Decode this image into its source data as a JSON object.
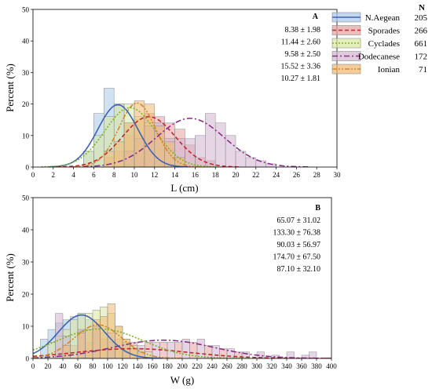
{
  "legend": {
    "n_header": "N",
    "entries": [
      {
        "name": "N.Aegean",
        "n": "205",
        "color": "#3d63b8",
        "fill": "#a9c8e8",
        "dash": "none"
      },
      {
        "name": "Sporades",
        "n": "266",
        "color": "#c0282d",
        "fill": "#e8a0a0",
        "dash": "5,3"
      },
      {
        "name": "Cyclades",
        "n": "661",
        "color": "#7ab51d",
        "fill": "#d8e8a0",
        "dash": "2,2"
      },
      {
        "name": "Dodecanese",
        "n": "172",
        "color": "#8a2d8a",
        "fill": "#d2b4d0",
        "dash": "7,3,2,3"
      },
      {
        "name": "Ionian",
        "n": "71",
        "color": "#d4862a",
        "fill": "#f0b870",
        "dash": "6,2,2,2,2,2"
      }
    ]
  },
  "chart_data": [
    {
      "type": "bar",
      "panel": "A",
      "xlabel": "L (cm)",
      "ylabel": "Percent (%)",
      "xlim": [
        0,
        30
      ],
      "ylim": [
        0,
        50
      ],
      "xticks": [
        "0",
        "2",
        "4",
        "6",
        "8",
        "10",
        "12",
        "14",
        "16",
        "18",
        "20",
        "22",
        "24",
        "26",
        "28",
        "30"
      ],
      "yticks": [
        "0",
        "10",
        "20",
        "30",
        "40",
        "50"
      ],
      "bin_width": 1,
      "stats": [
        "8.38 ± 1.98",
        "11.44 ± 2.60",
        "9.58 ± 2.50",
        "15.52 ± 3.36",
        "10.27 ± 1.81"
      ],
      "series": [
        {
          "name": "N.Aegean",
          "mean": 8.38,
          "sd": 1.98,
          "bins": [
            [
              5,
              5
            ],
            [
              6,
              17
            ],
            [
              7,
              25
            ],
            [
              8,
              20
            ],
            [
              9,
              14
            ],
            [
              10,
              10
            ],
            [
              11,
              5
            ],
            [
              12,
              2
            ]
          ]
        },
        {
          "name": "Sporades",
          "mean": 11.44,
          "sd": 2.6,
          "bins": [
            [
              7,
              3
            ],
            [
              8,
              5
            ],
            [
              9,
              10
            ],
            [
              10,
              15
            ],
            [
              11,
              17
            ],
            [
              12,
              16
            ],
            [
              13,
              14
            ],
            [
              14,
              12
            ],
            [
              15,
              7
            ],
            [
              16,
              3
            ],
            [
              17,
              2
            ]
          ]
        },
        {
          "name": "Cyclades",
          "mean": 9.58,
          "sd": 2.5,
          "bins": [
            [
              5,
              5
            ],
            [
              6,
              10
            ],
            [
              7,
              16
            ],
            [
              8,
              20
            ],
            [
              9,
              20
            ],
            [
              10,
              16
            ],
            [
              11,
              14
            ],
            [
              12,
              9
            ],
            [
              13,
              5
            ],
            [
              14,
              3
            ]
          ]
        },
        {
          "name": "Dodecanese",
          "mean": 15.52,
          "sd": 3.36,
          "bins": [
            [
              9,
              5
            ],
            [
              10,
              9
            ],
            [
              11,
              13
            ],
            [
              12,
              14
            ],
            [
              13,
              9
            ],
            [
              14,
              9
            ],
            [
              15,
              9
            ],
            [
              16,
              10
            ],
            [
              17,
              17
            ],
            [
              18,
              14
            ],
            [
              19,
              10
            ],
            [
              20,
              5
            ],
            [
              21,
              3
            ],
            [
              22,
              2
            ],
            [
              23,
              1
            ]
          ]
        },
        {
          "name": "Ionian",
          "mean": 10.27,
          "sd": 1.81,
          "bins": [
            [
              7,
              5
            ],
            [
              8,
              8
            ],
            [
              9,
              14
            ],
            [
              10,
              21
            ],
            [
              11,
              20
            ],
            [
              12,
              13
            ],
            [
              13,
              8
            ],
            [
              14,
              3
            ]
          ]
        }
      ]
    },
    {
      "type": "bar",
      "panel": "B",
      "xlabel": "W (g)",
      "ylabel": "Percent (%)",
      "xlim": [
        0,
        400
      ],
      "ylim": [
        0,
        50
      ],
      "xticks": [
        "0",
        "20",
        "40",
        "60",
        "80",
        "100",
        "120",
        "140",
        "160",
        "180",
        "200",
        "220",
        "240",
        "260",
        "280",
        "300",
        "320",
        "340",
        "360",
        "380",
        "400"
      ],
      "yticks": [
        "0",
        "10",
        "20",
        "30",
        "40",
        "50"
      ],
      "bin_width": 10,
      "stats": [
        "65.07 ± 31.02",
        "133.30 ± 76.38",
        "90.03 ± 56.97",
        "174.70 ± 67.50",
        "87.10 ± 32.10"
      ],
      "series": [
        {
          "name": "N.Aegean",
          "mean": 65.07,
          "sd": 31.02,
          "bins": [
            [
              10,
              6
            ],
            [
              20,
              9
            ],
            [
              30,
              11
            ],
            [
              40,
              12
            ],
            [
              50,
              13
            ],
            [
              60,
              14
            ],
            [
              70,
              12
            ],
            [
              80,
              10
            ],
            [
              90,
              8
            ],
            [
              100,
              5
            ],
            [
              110,
              3
            ],
            [
              120,
              2
            ]
          ]
        },
        {
          "name": "Sporades",
          "mean": 133.3,
          "sd": 76.38,
          "bins": [
            [
              30,
              3
            ],
            [
              50,
              4
            ],
            [
              70,
              5
            ],
            [
              90,
              6
            ],
            [
              110,
              6
            ],
            [
              130,
              5
            ],
            [
              150,
              5
            ],
            [
              170,
              5
            ],
            [
              190,
              5
            ],
            [
              210,
              5
            ],
            [
              230,
              4
            ],
            [
              250,
              3
            ],
            [
              270,
              2
            ]
          ]
        },
        {
          "name": "Cyclades",
          "mean": 90.03,
          "sd": 56.97,
          "bins": [
            [
              20,
              5
            ],
            [
              30,
              7
            ],
            [
              40,
              9
            ],
            [
              50,
              12
            ],
            [
              60,
              14
            ],
            [
              70,
              14
            ],
            [
              80,
              15
            ],
            [
              90,
              16
            ],
            [
              100,
              14
            ],
            [
              110,
              10
            ],
            [
              120,
              6
            ],
            [
              130,
              4
            ],
            [
              140,
              3
            ],
            [
              150,
              2
            ]
          ]
        },
        {
          "name": "Dodecanese",
          "mean": 174.7,
          "sd": 67.5,
          "bins": [
            [
              30,
              14
            ],
            [
              40,
              7
            ],
            [
              60,
              9
            ],
            [
              80,
              10
            ],
            [
              100,
              8
            ],
            [
              120,
              5
            ],
            [
              140,
              4
            ],
            [
              160,
              5
            ],
            [
              180,
              5
            ],
            [
              200,
              6
            ],
            [
              220,
              6
            ],
            [
              240,
              4
            ],
            [
              260,
              3
            ],
            [
              280,
              2
            ],
            [
              300,
              2
            ],
            [
              320,
              1
            ],
            [
              340,
              2
            ],
            [
              360,
              1
            ],
            [
              370,
              2
            ]
          ]
        },
        {
          "name": "Ionian",
          "mean": 87.1,
          "sd": 32.1,
          "bins": [
            [
              40,
              4
            ],
            [
              60,
              8
            ],
            [
              70,
              9
            ],
            [
              80,
              12
            ],
            [
              90,
              13
            ],
            [
              100,
              17
            ],
            [
              110,
              10
            ],
            [
              120,
              6
            ],
            [
              130,
              3
            ],
            [
              140,
              2
            ]
          ]
        }
      ]
    }
  ]
}
